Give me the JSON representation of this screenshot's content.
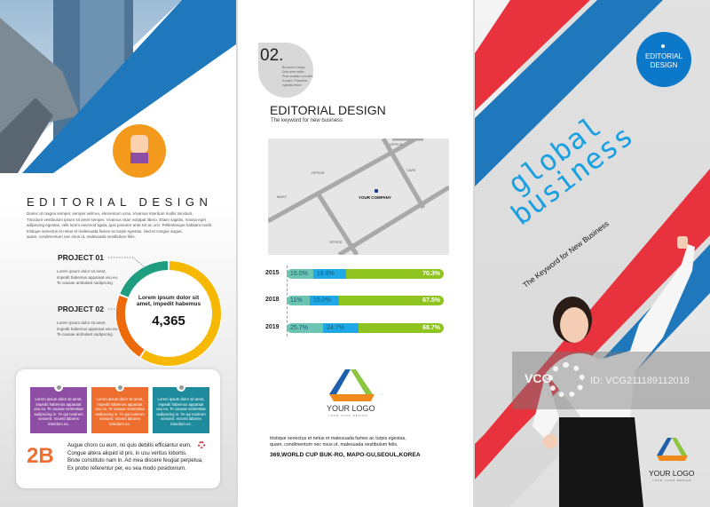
{
  "left_panel": {
    "title": "EDITORIAL DESIGN",
    "body": [
      "Donec at magna semper, semper velit eu, elementum urna. Vivamus interdum mollis tincidunt.",
      "Tincidunt vestibulum ipsum sit amet semper. Vivamus vitae volutpat libero. Etiam sagittis, massa eget",
      "adipiscing egestas, velit lorem euismod ligula, quis posuere ante est ac orci. Pellentesque habitant morbi",
      "tristique senectus et netus et malesuada fames ac turpis egestas. Sed et congue augue,",
      "quam, condimentum nec risus ut, malesuada vestibulum felis."
    ],
    "project1": {
      "label": "PROJECT 01",
      "text": [
        "Lorem ipsum dolor sit amet,",
        "impedit habemus apparaat usu eu.",
        "Te causae ambulant sadipscing"
      ]
    },
    "project2": {
      "label": "PROJECT 02",
      "text": [
        "Lorem ipsum dolor sit amet,",
        "impedit habemus apparaat usu eu.",
        "Te causae ambulant sadipscing"
      ]
    },
    "donut": {
      "caption": "Lorem ipsum dolor sit amet, impedit habemus",
      "value": "4,365",
      "colors": {
        "teal": "#1f9e7f",
        "yellow": "#f6b800",
        "orange": "#ec6a0c"
      }
    },
    "cards": [
      {
        "text": "Lorem ipsum dolor sit amet, impedit habemus apparaat usu eu. Te causae sententiae sadipscing in. Te qui nostrum senserit. Vocent labores interdum ex.",
        "color": "#8e4ea3"
      },
      {
        "text": "Lorem ipsum dolor sit amet, impedit habemus apparaat usu eu. Te causae sententiae sadipscing in. Te qui nostrum senserit. Vocent labores interdum ex.",
        "color": "#ed6e2f"
      },
      {
        "text": "Lorem ipsum dolor sit amet, impedit habemus apparaat usu eu. Te causae sententiae sadipscing in. Te qui nostrum senserit. Vocent labores interdum ex.",
        "color": "#1f8c9e"
      }
    ],
    "badge": "2B",
    "quote": [
      "Augue choro cu eum, no quis debitis efficiantur eum,",
      "Congue altera aliquid id pro, in usu veritus lobortis.",
      "Brute constituto nam in. Ad mea discere feugiat perpetua,",
      "Ex probo referentur per, eu sea modo posidonium."
    ]
  },
  "middle_panel": {
    "number": "02.",
    "number_text": [
      "Brochure Design",
      "Duis ante mollis",
      "Pras sodales convallis",
      "In justo. Phasellus",
      "egestas etiam"
    ],
    "title": "EDITORIAL DESIGN",
    "subtitle": "The keyword for new business",
    "map": {
      "labels": {
        "office1": "OFFICE",
        "office2": "OFFICE",
        "office3": "OFFICE",
        "cafe": "CAFE",
        "mart": "MART",
        "company": "YOUR COMPANY"
      }
    },
    "bars": [
      {
        "year": "2015",
        "segments": [
          "15.0%",
          "19.8%",
          "70.3%"
        ],
        "values": [
          15.0,
          19.8,
          70.3
        ]
      },
      {
        "year": "2018",
        "segments": [
          "11%",
          "15.0%",
          "67.5%"
        ],
        "values": [
          11,
          15.0,
          67.5
        ]
      },
      {
        "year": "2019",
        "segments": [
          "25.7%",
          "24.7%",
          "68.7%"
        ],
        "values": [
          25.7,
          24.7,
          68.7
        ]
      }
    ],
    "bar_colors": [
      "#6cc5b3",
      "#1ea8e6",
      "#8fc31f"
    ],
    "logo": {
      "name": "YOUR LOGO",
      "tagline": "YOUR LOGO DESIGN"
    },
    "footer_text": [
      "tristique senectus et netus et malesuada fames ac turpis egestas,",
      "quam, condimentum nec risus ut, malesuada vestibulum felis,"
    ],
    "address": "369,WORLD CUP BUK-RO, MAPO-GU,SEOUL,KOREA"
  },
  "right_panel": {
    "badge": "EDITORIAL DESIGN",
    "headline1": "global",
    "headline2": "business",
    "tagline": "The Keyword for New Business",
    "watermark": {
      "brand": "VCG",
      "id": "ID: VCG211189112018"
    },
    "logo": {
      "name": "YOUR LOGO",
      "tagline": "YOUR LOGO DESIGN"
    },
    "colors": {
      "red": "#e8323e",
      "blue": "#1f78bb",
      "headline": "#1aa0e0"
    }
  }
}
